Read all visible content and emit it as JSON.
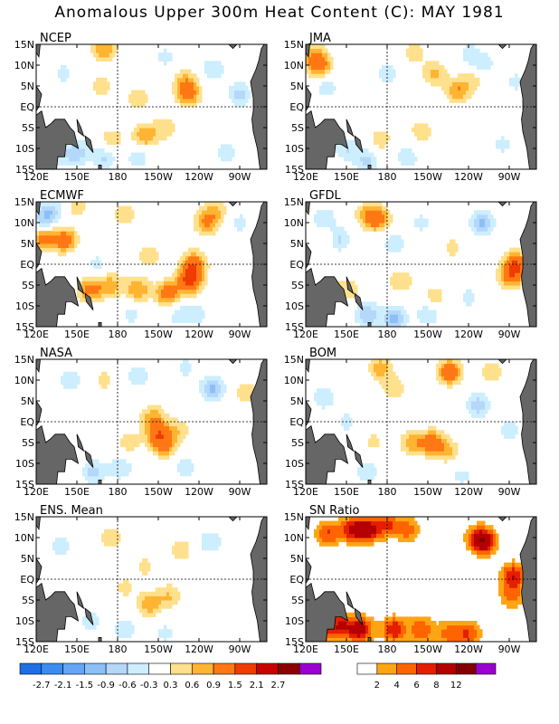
{
  "title": "Anomalous Upper 300m Heat Content (C): MAY 1981",
  "axes": {
    "lon_ticks": [
      "120E",
      "150E",
      "180",
      "150W",
      "120W",
      "90W"
    ],
    "lat_ticks": [
      "15N",
      "10N",
      "5N",
      "EQ",
      "5S",
      "10S",
      "15S"
    ]
  },
  "chart_data": [
    {
      "type": "heatmap",
      "title": "NCEP",
      "blobs": [
        {
          "lon": 170,
          "lat": 14,
          "v": 0.9
        },
        {
          "lon": 168,
          "lat": 5,
          "v": 0.5
        },
        {
          "lon": 195,
          "lat": 2,
          "v": 0.5
        },
        {
          "lon": 232,
          "lat": 3,
          "v": 1.0
        },
        {
          "lon": 230,
          "lat": 6,
          "v": 0.7
        },
        {
          "lon": 200,
          "lat": -7,
          "v": 0.9
        },
        {
          "lon": 175,
          "lat": -8,
          "v": 0.6
        },
        {
          "lon": 215,
          "lat": -5,
          "v": 0.5
        },
        {
          "lon": 125,
          "lat": -11,
          "v": 1.2
        },
        {
          "lon": 123,
          "lat": -8,
          "v": 0.9
        },
        {
          "lon": 150,
          "lat": -11,
          "v": -0.8
        },
        {
          "lon": 135,
          "lat": -12,
          "v": -0.6
        },
        {
          "lon": 170,
          "lat": -12,
          "v": -0.7
        },
        {
          "lon": 195,
          "lat": -12,
          "v": -0.5
        },
        {
          "lon": 250,
          "lat": 9,
          "v": -0.6
        },
        {
          "lon": 270,
          "lat": 3,
          "v": -0.7
        },
        {
          "lon": 260,
          "lat": -11,
          "v": -0.5
        },
        {
          "lon": 140,
          "lat": 8,
          "v": -0.4
        },
        {
          "lon": 215,
          "lat": 12,
          "v": -0.4
        }
      ]
    },
    {
      "type": "heatmap",
      "title": "JMA",
      "blobs": [
        {
          "lon": 130,
          "lat": 10,
          "v": 1.2
        },
        {
          "lon": 125,
          "lat": 13,
          "v": 0.6
        },
        {
          "lon": 215,
          "lat": 8,
          "v": 0.7
        },
        {
          "lon": 232,
          "lat": 4,
          "v": 0.9
        },
        {
          "lon": 245,
          "lat": 7,
          "v": 0.5
        },
        {
          "lon": 200,
          "lat": 13,
          "v": 0.5
        },
        {
          "lon": 175,
          "lat": -8,
          "v": 0.5
        },
        {
          "lon": 205,
          "lat": -6,
          "v": 0.5
        },
        {
          "lon": 135,
          "lat": 5,
          "v": -0.5
        },
        {
          "lon": 180,
          "lat": 8,
          "v": -0.5
        },
        {
          "lon": 250,
          "lat": 10,
          "v": -0.6
        },
        {
          "lon": 240,
          "lat": 13,
          "v": -0.4
        },
        {
          "lon": 150,
          "lat": -10,
          "v": -0.6
        },
        {
          "lon": 165,
          "lat": -13,
          "v": -0.7
        },
        {
          "lon": 195,
          "lat": -12,
          "v": -0.5
        },
        {
          "lon": 265,
          "lat": -9,
          "v": -0.4
        },
        {
          "lon": 275,
          "lat": 6,
          "v": -0.4
        }
      ]
    },
    {
      "type": "heatmap",
      "title": "ECMWF",
      "blobs": [
        {
          "lon": 125,
          "lat": 6,
          "v": 1.1
        },
        {
          "lon": 141,
          "lat": 6,
          "v": 1.2
        },
        {
          "lon": 150,
          "lat": 14,
          "v": 0.5
        },
        {
          "lon": 185,
          "lat": 12,
          "v": 0.5
        },
        {
          "lon": 245,
          "lat": 10,
          "v": 0.9
        },
        {
          "lon": 252,
          "lat": 13,
          "v": 0.6
        },
        {
          "lon": 236,
          "lat": 0,
          "v": 1.3
        },
        {
          "lon": 233,
          "lat": -4,
          "v": 1.6
        },
        {
          "lon": 217,
          "lat": -7,
          "v": 1.2
        },
        {
          "lon": 195,
          "lat": -6,
          "v": 0.9
        },
        {
          "lon": 175,
          "lat": -5,
          "v": 0.8
        },
        {
          "lon": 160,
          "lat": -6,
          "v": 1.1
        },
        {
          "lon": 203,
          "lat": 2,
          "v": 0.5
        },
        {
          "lon": 125,
          "lat": 11,
          "v": -0.7
        },
        {
          "lon": 132,
          "lat": 13,
          "v": -0.6
        },
        {
          "lon": 165,
          "lat": 0,
          "v": -0.4
        },
        {
          "lon": 240,
          "lat": -12,
          "v": -0.4
        },
        {
          "lon": 190,
          "lat": -12,
          "v": -0.4
        },
        {
          "lon": 225,
          "lat": -12,
          "v": -0.5
        },
        {
          "lon": 270,
          "lat": 10,
          "v": -0.4
        }
      ]
    },
    {
      "type": "heatmap",
      "title": "GFDL",
      "blobs": [
        {
          "lon": 173,
          "lat": 11,
          "v": 1.1
        },
        {
          "lon": 165,
          "lat": 12,
          "v": 0.6
        },
        {
          "lon": 275,
          "lat": 0,
          "v": 1.4
        },
        {
          "lon": 271,
          "lat": -3,
          "v": 1.0
        },
        {
          "lon": 150,
          "lat": -6,
          "v": 0.6
        },
        {
          "lon": 190,
          "lat": -4,
          "v": 0.6
        },
        {
          "lon": 215,
          "lat": -8,
          "v": 0.5
        },
        {
          "lon": 135,
          "lat": 6,
          "v": 0.5
        },
        {
          "lon": 228,
          "lat": 4,
          "v": 0.4
        },
        {
          "lon": 250,
          "lat": 10,
          "v": -1.0
        },
        {
          "lon": 143,
          "lat": 6,
          "v": -0.8
        },
        {
          "lon": 133,
          "lat": 11,
          "v": -0.6
        },
        {
          "lon": 185,
          "lat": 5,
          "v": -0.5
        },
        {
          "lon": 205,
          "lat": 10,
          "v": -0.4
        },
        {
          "lon": 165,
          "lat": -12,
          "v": -0.9
        },
        {
          "lon": 185,
          "lat": -13,
          "v": -1.0
        },
        {
          "lon": 210,
          "lat": -12,
          "v": -0.6
        },
        {
          "lon": 240,
          "lat": -8,
          "v": -0.4
        }
      ]
    },
    {
      "type": "heatmap",
      "title": "NASA",
      "blobs": [
        {
          "lon": 210,
          "lat": -3,
          "v": 1.2
        },
        {
          "lon": 206,
          "lat": 1,
          "v": 0.8
        },
        {
          "lon": 215,
          "lat": -6,
          "v": 0.8
        },
        {
          "lon": 188,
          "lat": -5,
          "v": 0.5
        },
        {
          "lon": 225,
          "lat": -2,
          "v": 0.5
        },
        {
          "lon": 170,
          "lat": 10,
          "v": 0.4
        },
        {
          "lon": 275,
          "lat": 7,
          "v": 0.5
        },
        {
          "lon": 250,
          "lat": 8,
          "v": -1.0
        },
        {
          "lon": 145,
          "lat": 10,
          "v": -0.6
        },
        {
          "lon": 195,
          "lat": 11,
          "v": -0.5
        },
        {
          "lon": 230,
          "lat": 13,
          "v": -0.4
        },
        {
          "lon": 162,
          "lat": -12,
          "v": -0.7
        },
        {
          "lon": 182,
          "lat": -11,
          "v": -0.6
        },
        {
          "lon": 230,
          "lat": -11,
          "v": -0.5
        }
      ]
    },
    {
      "type": "heatmap",
      "title": "BOM",
      "blobs": [
        {
          "lon": 226,
          "lat": 12,
          "v": 1.3
        },
        {
          "lon": 175,
          "lat": 13,
          "v": 0.8
        },
        {
          "lon": 185,
          "lat": 8,
          "v": 0.5
        },
        {
          "lon": 213,
          "lat": -5,
          "v": 1.2
        },
        {
          "lon": 198,
          "lat": -5,
          "v": 0.8
        },
        {
          "lon": 225,
          "lat": -7,
          "v": 0.6
        },
        {
          "lon": 170,
          "lat": -5,
          "v": 0.4
        },
        {
          "lon": 257,
          "lat": 12,
          "v": 0.5
        },
        {
          "lon": 133,
          "lat": 6,
          "v": -0.6
        },
        {
          "lon": 150,
          "lat": 0,
          "v": -0.4
        },
        {
          "lon": 247,
          "lat": 4,
          "v": -0.8
        },
        {
          "lon": 270,
          "lat": -2,
          "v": -0.5
        },
        {
          "lon": 165,
          "lat": -12,
          "v": -0.5
        },
        {
          "lon": 235,
          "lat": -13,
          "v": -0.4
        }
      ]
    },
    {
      "type": "heatmap",
      "title": "ENS. Mean",
      "blobs": [
        {
          "lon": 203,
          "lat": -6,
          "v": 0.8
        },
        {
          "lon": 218,
          "lat": -4,
          "v": 0.6
        },
        {
          "lon": 185,
          "lat": -2,
          "v": 0.4
        },
        {
          "lon": 175,
          "lat": 10,
          "v": 0.5
        },
        {
          "lon": 227,
          "lat": 7,
          "v": 0.5
        },
        {
          "lon": 200,
          "lat": 3,
          "v": 0.4
        },
        {
          "lon": 248,
          "lat": 9,
          "v": -0.6
        },
        {
          "lon": 138,
          "lat": 8,
          "v": -0.5
        },
        {
          "lon": 160,
          "lat": -10,
          "v": -0.5
        },
        {
          "lon": 185,
          "lat": -12,
          "v": -0.5
        },
        {
          "lon": 215,
          "lat": -13,
          "v": -0.4
        }
      ]
    },
    {
      "type": "heatmap",
      "title": "SN Ratio",
      "blobs": [
        {
          "lon": 165,
          "lat": 12,
          "v": 5
        },
        {
          "lon": 153,
          "lat": 12,
          "v": 3.5
        },
        {
          "lon": 180,
          "lat": 13,
          "v": 3
        },
        {
          "lon": 136,
          "lat": 11,
          "v": 3
        },
        {
          "lon": 195,
          "lat": 12,
          "v": 2.5
        },
        {
          "lon": 252,
          "lat": 9,
          "v": 4
        },
        {
          "lon": 247,
          "lat": 10,
          "v": 3
        },
        {
          "lon": 273,
          "lat": 1,
          "v": 4
        },
        {
          "lon": 272,
          "lat": -4,
          "v": 2.5
        },
        {
          "lon": 160,
          "lat": -12,
          "v": 5
        },
        {
          "lon": 145,
          "lat": -11,
          "v": 4
        },
        {
          "lon": 185,
          "lat": -12,
          "v": 4
        },
        {
          "lon": 205,
          "lat": -12,
          "v": 3
        },
        {
          "lon": 240,
          "lat": -13,
          "v": 3
        },
        {
          "lon": 225,
          "lat": -13,
          "v": 2.5
        },
        {
          "lon": 130,
          "lat": -13,
          "v": 3
        }
      ]
    }
  ],
  "legend_anomaly": {
    "labels": [
      "-2.7",
      "-2.1",
      "-1.5",
      "-0.9",
      "-0.6",
      "-0.3",
      "0.3",
      "0.6",
      "0.9",
      "1.5",
      "2.1",
      "2.7"
    ],
    "colors": [
      "#1e6ee6",
      "#3c8cf0",
      "#64a5f5",
      "#8cbff7",
      "#b4d7fa",
      "#cceeff",
      "#ffffff",
      "#ffe08c",
      "#ffb432",
      "#ff7814",
      "#f03c00",
      "#c80000",
      "#8c0000",
      "#9a00d0"
    ]
  },
  "legend_snr": {
    "labels": [
      "2",
      "4",
      "6",
      "8",
      "12"
    ],
    "colors": [
      "#ffffff",
      "#ffa514",
      "#ff6400",
      "#e61e00",
      "#b40000",
      "#820000",
      "#9a00d0"
    ]
  },
  "colors": {
    "land": "#666666",
    "coast": "#000000",
    "grid": "#000000"
  }
}
